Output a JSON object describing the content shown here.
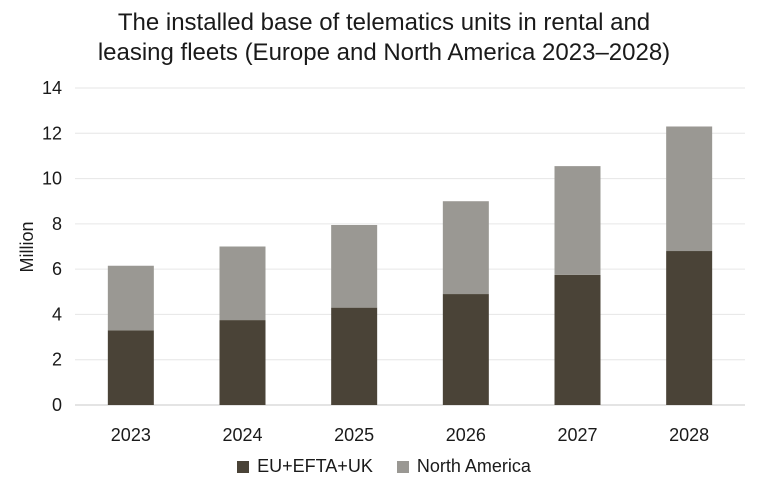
{
  "chart_data": {
    "type": "bar",
    "stacked": true,
    "title_lines": [
      "The installed base of telematics units in rental and",
      "leasing fleets (Europe and North America 2023–2028)"
    ],
    "ylabel": "Million",
    "ylim": [
      0,
      14
    ],
    "yticks": [
      0,
      2,
      4,
      6,
      8,
      10,
      12,
      14
    ],
    "grid": true,
    "categories": [
      "2023",
      "2024",
      "2025",
      "2026",
      "2027",
      "2028"
    ],
    "series": [
      {
        "name": "EU+EFTA+UK",
        "color": "#4a4337",
        "values": [
          3.3,
          3.75,
          4.3,
          4.9,
          5.75,
          6.8
        ]
      },
      {
        "name": "North America",
        "color": "#9a9893",
        "values": [
          2.85,
          3.25,
          3.65,
          4.1,
          4.8,
          5.5
        ]
      }
    ],
    "legend_position": "bottom"
  }
}
